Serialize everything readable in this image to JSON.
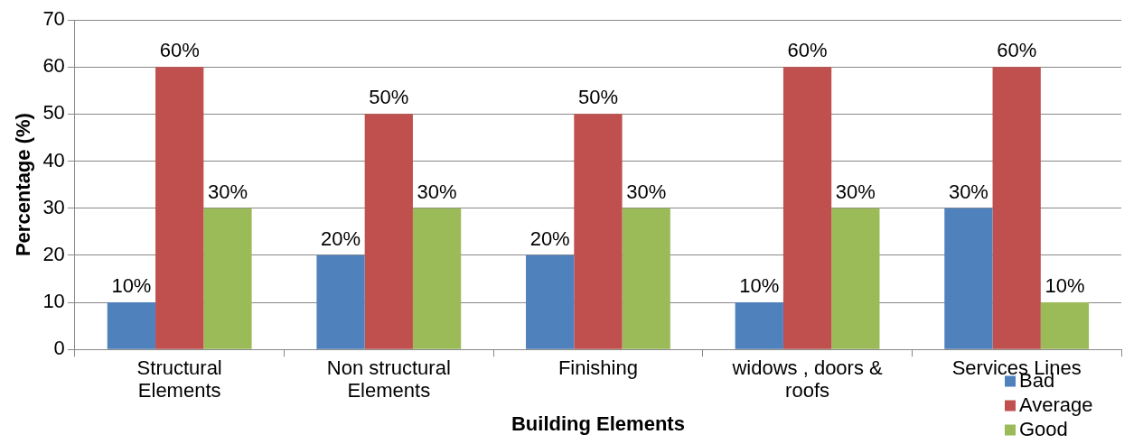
{
  "chart_data": {
    "type": "bar",
    "xlabel": "Building Elements",
    "ylabel": "Percentage (%)",
    "categories": [
      "Structural Elements",
      "Non structural Elements",
      "Finishing",
      "widows , doors & roofs",
      "Services Lines"
    ],
    "series": [
      {
        "name": "Bad",
        "color": "#4f81bd",
        "values": [
          10,
          20,
          20,
          10,
          30
        ],
        "value_labels": [
          "10%",
          "20%",
          "20%",
          "10%",
          "30%"
        ]
      },
      {
        "name": "Average",
        "color": "#c0504d",
        "values": [
          60,
          50,
          50,
          60,
          60
        ],
        "value_labels": [
          "60%",
          "50%",
          "50%",
          "60%",
          "60%"
        ]
      },
      {
        "name": "Good",
        "color": "#9bbb59",
        "values": [
          30,
          30,
          30,
          30,
          10
        ],
        "value_labels": [
          "30%",
          "30%",
          "30%",
          "30%",
          "10%"
        ]
      }
    ],
    "ylim": [
      0,
      70
    ],
    "yticks": [
      0,
      10,
      20,
      30,
      40,
      50,
      60,
      70
    ],
    "grid": "y",
    "legend": "bottom right"
  }
}
